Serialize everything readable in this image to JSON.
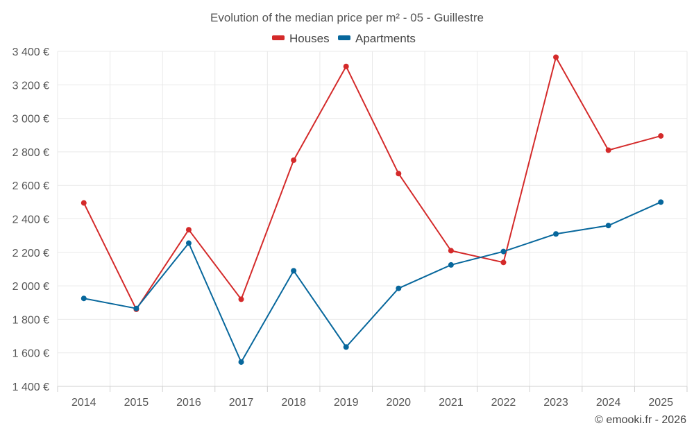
{
  "chart_data": {
    "type": "line",
    "title": "Evolution of the median price per m² - 05 - Guillestre",
    "xlabel": "",
    "ylabel": "",
    "categories": [
      "2014",
      "2015",
      "2016",
      "2017",
      "2018",
      "2019",
      "2020",
      "2021",
      "2022",
      "2023",
      "2024",
      "2025"
    ],
    "ylim": [
      1400,
      3400
    ],
    "yticks": [
      1400,
      1600,
      1800,
      2000,
      2200,
      2400,
      2600,
      2800,
      3000,
      3200,
      3400
    ],
    "ytick_labels": [
      "1 400 €",
      "1 600 €",
      "1 800 €",
      "2 000 €",
      "2 200 €",
      "2 400 €",
      "2 600 €",
      "2 800 €",
      "3 000 €",
      "3 200 €",
      "3 400 €"
    ],
    "grid": true,
    "legend_position": "top-center",
    "series": [
      {
        "name": "Houses",
        "color": "#d42a2a",
        "values": [
          2495,
          1860,
          2335,
          1920,
          2750,
          3310,
          2670,
          2210,
          2140,
          3365,
          2810,
          2895
        ]
      },
      {
        "name": "Apartments",
        "color": "#07679c",
        "values": [
          1925,
          1865,
          2255,
          1545,
          2090,
          1635,
          1985,
          2125,
          2205,
          2310,
          2360,
          2500
        ]
      }
    ]
  },
  "credit": "© emooki.fr - 2026"
}
